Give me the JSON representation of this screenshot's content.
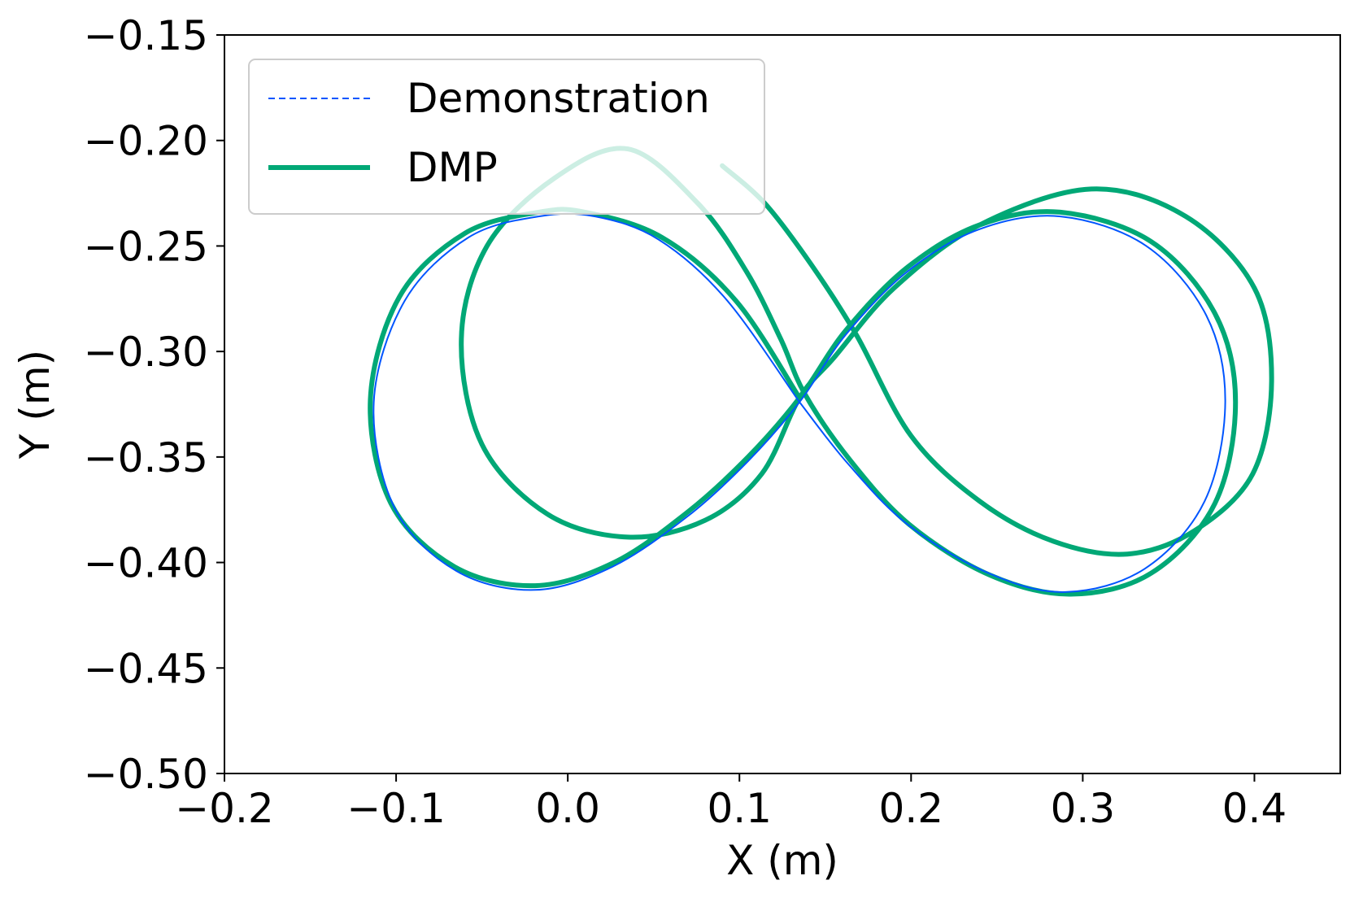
{
  "chart_data": {
    "type": "line",
    "title": "",
    "xlabel": "X (m)",
    "ylabel": "Y (m)",
    "xlim": [
      -0.2,
      0.45
    ],
    "ylim": [
      -0.5,
      -0.15
    ],
    "xticks": [
      -0.2,
      -0.1,
      0.0,
      0.1,
      0.2,
      0.3,
      0.4
    ],
    "xtick_labels": [
      "−0.2",
      "−0.1",
      "0.0",
      "0.1",
      "0.2",
      "0.3",
      "0.4"
    ],
    "yticks": [
      -0.15,
      -0.2,
      -0.25,
      -0.3,
      -0.35,
      -0.4,
      -0.45,
      -0.5
    ],
    "ytick_labels": [
      "−0.15",
      "−0.20",
      "−0.25",
      "−0.30",
      "−0.35",
      "−0.40",
      "−0.45",
      "−0.50"
    ],
    "grid": false,
    "legend_position": "top-left",
    "series": [
      {
        "name": "Demonstration",
        "color": "#0055ff",
        "style": "dashed",
        "points": [
          [
            0.135,
            -0.324
          ],
          [
            0.092,
            -0.275
          ],
          [
            0.053,
            -0.247
          ],
          [
            0.016,
            -0.236
          ],
          [
            -0.017,
            -0.236
          ],
          [
            -0.058,
            -0.246
          ],
          [
            -0.095,
            -0.276
          ],
          [
            -0.113,
            -0.324
          ],
          [
            -0.101,
            -0.374
          ],
          [
            -0.065,
            -0.404
          ],
          [
            -0.019,
            -0.413
          ],
          [
            0.026,
            -0.402
          ],
          [
            0.07,
            -0.378
          ],
          [
            0.105,
            -0.352
          ],
          [
            0.135,
            -0.324
          ],
          [
            0.162,
            -0.292
          ],
          [
            0.198,
            -0.262
          ],
          [
            0.24,
            -0.242
          ],
          [
            0.287,
            -0.236
          ],
          [
            0.337,
            -0.25
          ],
          [
            0.372,
            -0.283
          ],
          [
            0.383,
            -0.324
          ],
          [
            0.371,
            -0.371
          ],
          [
            0.336,
            -0.403
          ],
          [
            0.29,
            -0.414
          ],
          [
            0.245,
            -0.405
          ],
          [
            0.198,
            -0.382
          ],
          [
            0.163,
            -0.353
          ],
          [
            0.135,
            -0.324
          ]
        ]
      },
      {
        "name": "DMP",
        "color": "#00a876",
        "style": "solid",
        "points": [
          [
            0.135,
            -0.322
          ],
          [
            0.098,
            -0.276
          ],
          [
            0.055,
            -0.246
          ],
          [
            0.01,
            -0.234
          ],
          [
            -0.017,
            -0.234
          ],
          [
            -0.06,
            -0.244
          ],
          [
            -0.098,
            -0.274
          ],
          [
            -0.115,
            -0.323
          ],
          [
            -0.103,
            -0.372
          ],
          [
            -0.066,
            -0.402
          ],
          [
            -0.019,
            -0.411
          ],
          [
            0.027,
            -0.4
          ],
          [
            0.07,
            -0.376
          ],
          [
            0.105,
            -0.35
          ],
          [
            0.135,
            -0.322
          ],
          [
            0.162,
            -0.29
          ],
          [
            0.198,
            -0.26
          ],
          [
            0.24,
            -0.24
          ],
          [
            0.287,
            -0.234
          ],
          [
            0.34,
            -0.248
          ],
          [
            0.377,
            -0.282
          ],
          [
            0.389,
            -0.324
          ],
          [
            0.377,
            -0.372
          ],
          [
            0.34,
            -0.405
          ],
          [
            0.293,
            -0.415
          ],
          [
            0.246,
            -0.406
          ],
          [
            0.199,
            -0.382
          ],
          [
            0.164,
            -0.351
          ],
          [
            0.138,
            -0.32
          ],
          [
            0.124,
            -0.294
          ],
          [
            0.104,
            -0.262
          ],
          [
            0.076,
            -0.23
          ],
          [
            0.035,
            -0.204
          ],
          [
            -0.008,
            -0.218
          ],
          [
            -0.047,
            -0.25
          ],
          [
            -0.062,
            -0.294
          ],
          [
            -0.05,
            -0.344
          ],
          [
            -0.012,
            -0.377
          ],
          [
            0.035,
            -0.388
          ],
          [
            0.08,
            -0.38
          ],
          [
            0.113,
            -0.358
          ],
          [
            0.135,
            -0.322
          ],
          [
            0.155,
            -0.303
          ],
          [
            0.19,
            -0.27
          ],
          [
            0.24,
            -0.24
          ],
          [
            0.305,
            -0.223
          ],
          [
            0.36,
            -0.236
          ],
          [
            0.4,
            -0.27
          ],
          [
            0.41,
            -0.314
          ],
          [
            0.399,
            -0.358
          ],
          [
            0.365,
            -0.385
          ],
          [
            0.326,
            -0.396
          ],
          [
            0.283,
            -0.39
          ],
          [
            0.24,
            -0.371
          ],
          [
            0.2,
            -0.34
          ],
          [
            0.168,
            -0.292
          ],
          [
            0.142,
            -0.259
          ],
          [
            0.115,
            -0.23
          ],
          [
            0.09,
            -0.212
          ]
        ]
      }
    ]
  }
}
